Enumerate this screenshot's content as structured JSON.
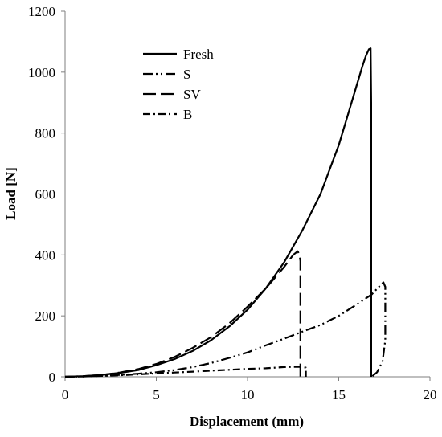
{
  "chart_data": {
    "type": "line",
    "xlabel": "Displacement (mm)",
    "ylabel": "Load [N]",
    "xlim": [
      0,
      20
    ],
    "ylim": [
      0,
      1200
    ],
    "xticks": [
      0,
      5,
      10,
      15,
      20
    ],
    "yticks": [
      0,
      200,
      400,
      600,
      800,
      1000,
      1200
    ],
    "grid": false,
    "legend_position": "top-left inside",
    "series": [
      {
        "name": "Fresh",
        "dash": "solid",
        "x": [
          0,
          1,
          2,
          3,
          4,
          5,
          6,
          7,
          8,
          9,
          10,
          11,
          12,
          13,
          14,
          15,
          15.5,
          16,
          16.3,
          16.5,
          16.65,
          16.75,
          16.78,
          16.78
        ],
        "y": [
          0,
          2,
          6,
          13,
          22,
          38,
          58,
          85,
          120,
          165,
          220,
          290,
          375,
          480,
          600,
          760,
          860,
          960,
          1020,
          1055,
          1075,
          1078,
          900,
          0
        ]
      },
      {
        "name": "S",
        "dash": "dash-dot-dot",
        "x": [
          0,
          1,
          2,
          3,
          4,
          5,
          6,
          7,
          8,
          9,
          10,
          11,
          12,
          13,
          14,
          15,
          16,
          16.8,
          17.2,
          17.45,
          17.55,
          17.55,
          17.4,
          17.1,
          16.8
        ],
        "y": [
          0,
          1,
          3,
          6,
          10,
          15,
          22,
          32,
          45,
          62,
          80,
          103,
          125,
          148,
          170,
          200,
          238,
          270,
          295,
          310,
          295,
          120,
          50,
          15,
          0
        ]
      },
      {
        "name": "SV",
        "dash": "long-dash",
        "x": [
          0,
          1,
          2,
          3,
          4,
          5,
          6,
          7,
          8,
          9,
          10,
          11,
          12,
          12.5,
          12.75,
          12.85,
          12.9,
          12.9
        ],
        "y": [
          0,
          2,
          6,
          14,
          25,
          42,
          65,
          95,
          130,
          175,
          230,
          290,
          360,
          400,
          412,
          400,
          380,
          0
        ]
      },
      {
        "name": "B",
        "dash": "dash-dot",
        "x": [
          0,
          1,
          2,
          3,
          4,
          5,
          6,
          7,
          8,
          9,
          10,
          11,
          12,
          12.9,
          13.2,
          13.2
        ],
        "y": [
          0,
          1,
          3,
          5,
          8,
          11,
          14,
          17,
          20,
          23,
          26,
          28,
          32,
          33,
          30,
          0
        ]
      }
    ]
  }
}
